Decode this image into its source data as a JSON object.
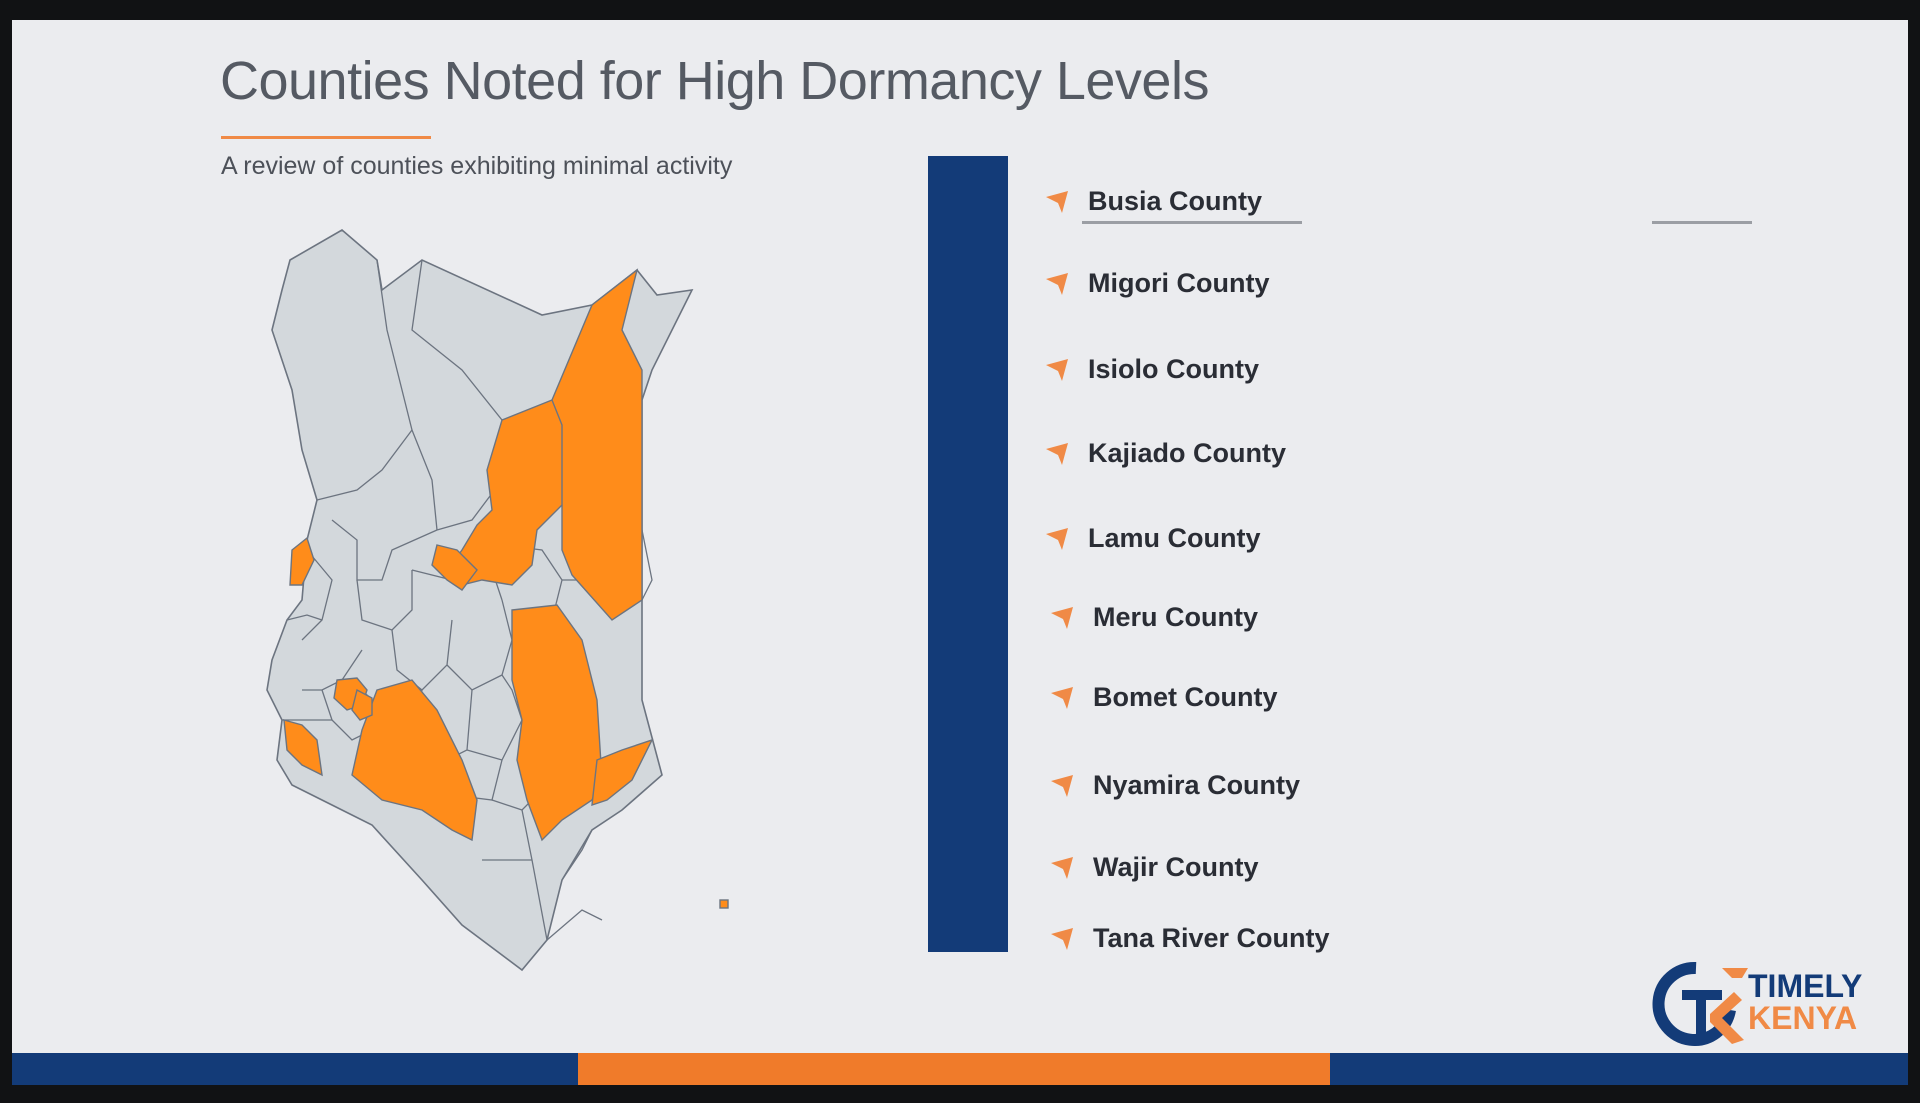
{
  "slide": {
    "title": "Counties Noted for High Dormancy Levels",
    "subtitle": "A review of counties exhibiting minimal activity"
  },
  "counties": [
    {
      "label": "Busia County"
    },
    {
      "label": "Migori County"
    },
    {
      "label": "Isiolo County"
    },
    {
      "label": "Kajiado County"
    },
    {
      "label": "Lamu County"
    },
    {
      "label": "Meru County"
    },
    {
      "label": "Bomet County"
    },
    {
      "label": "Nyamira County"
    },
    {
      "label": "Wajir County"
    },
    {
      "label": "Tana River County"
    }
  ],
  "map": {
    "highlight_color": "#ff8c1a",
    "base_color": "#d3d8dc",
    "border_color": "#6c7480"
  },
  "logo": {
    "line1": "TIMELY",
    "line2": "KENYA"
  },
  "colors": {
    "accent": "#f08a46",
    "navy": "#133b78",
    "background": "#ebecef"
  },
  "icons": {
    "list_bullet": "orange-arrow-icon",
    "logo_mark": "tk-monogram-icon"
  }
}
